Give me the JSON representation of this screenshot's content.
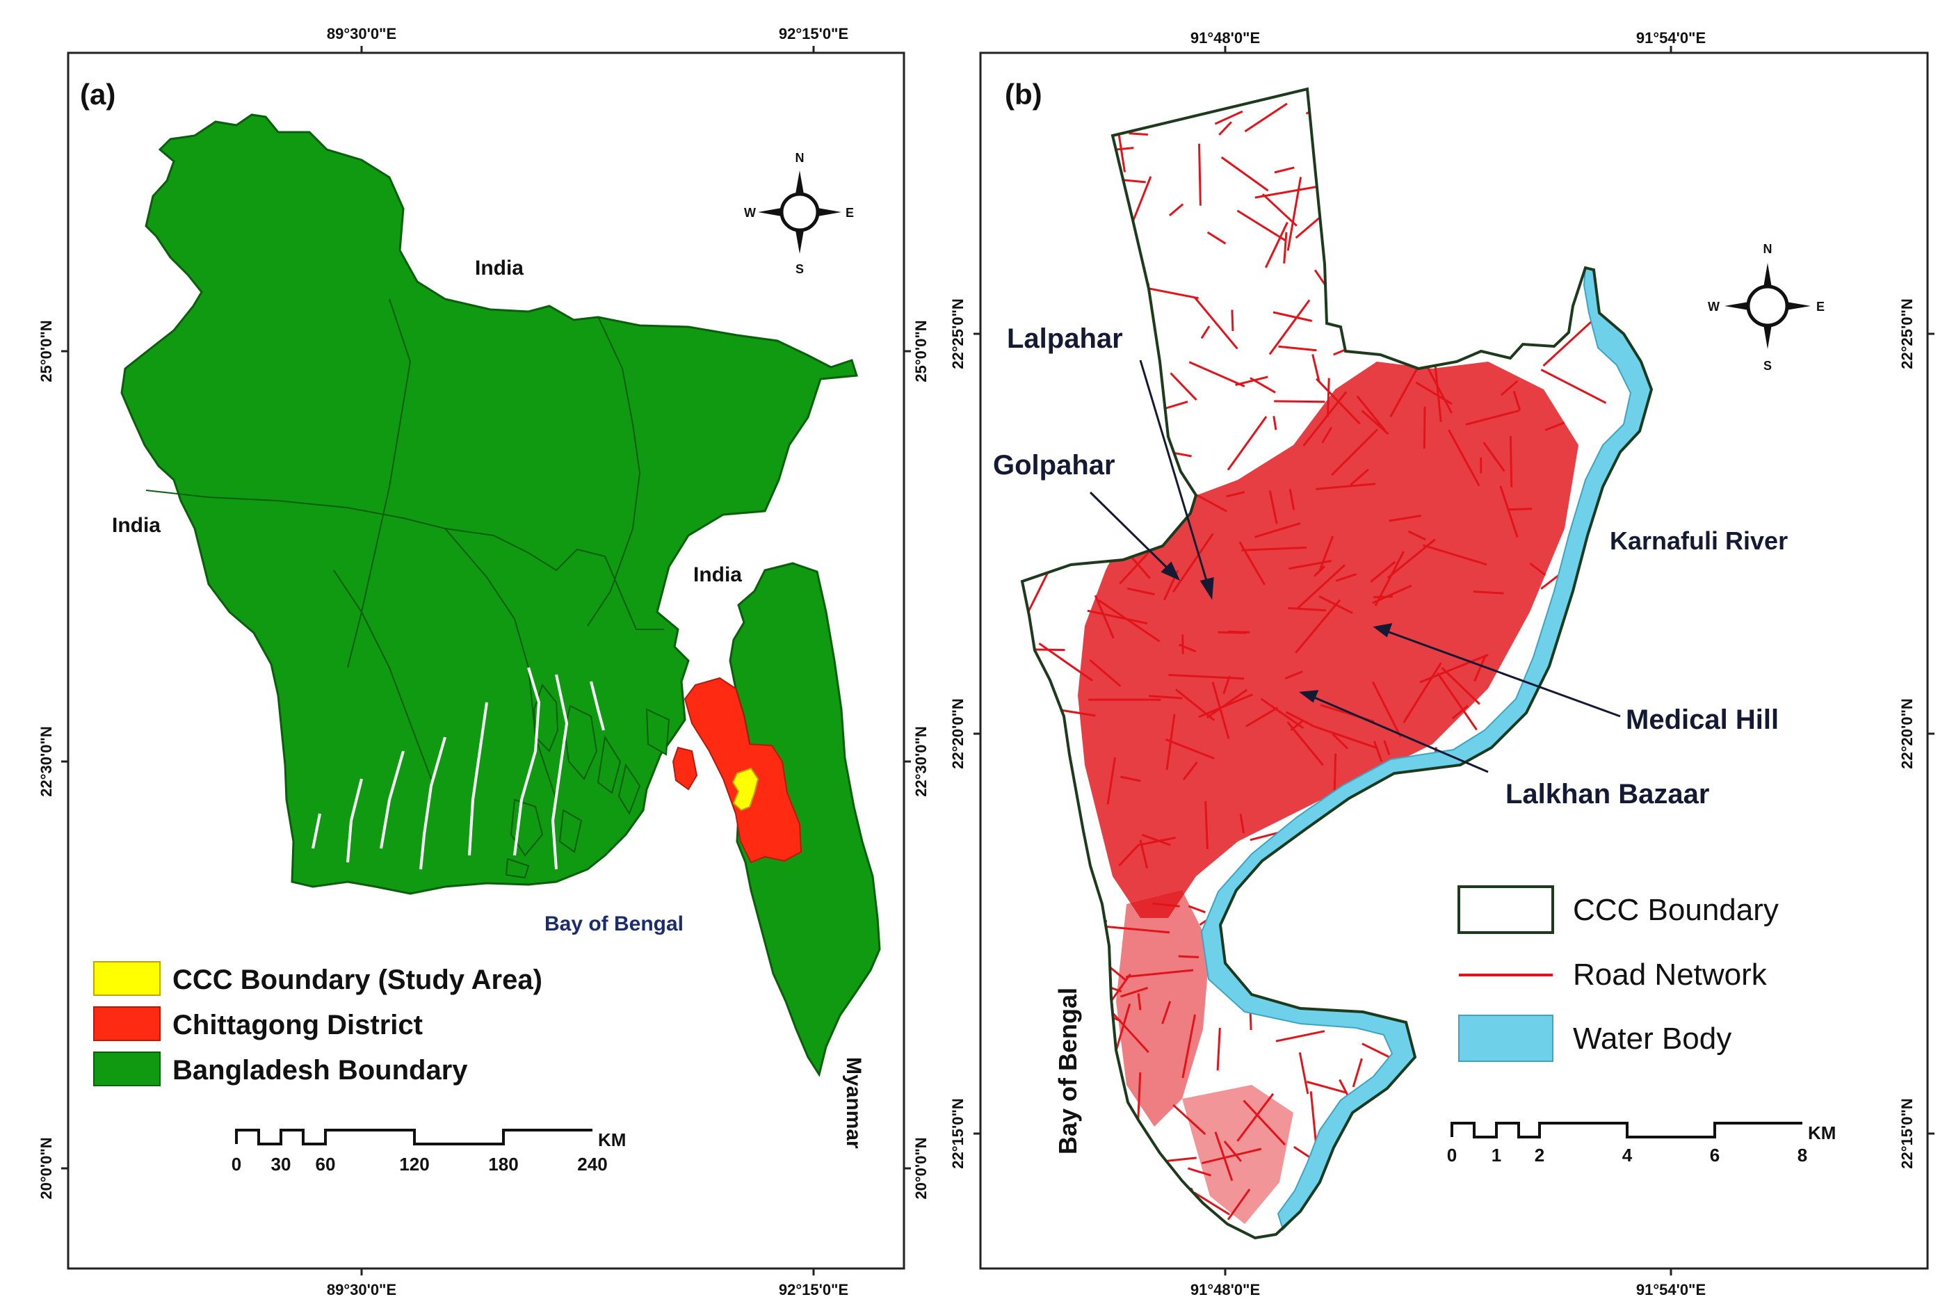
{
  "panel_a": {
    "tag": "(a)",
    "top_ticks": [
      "89°30'0\"E",
      "92°15'0\"E"
    ],
    "bottom_ticks": [
      "89°30'0\"E",
      "92°15'0\"E"
    ],
    "left_ticks": [
      "25°0'0\"N",
      "22°30'0\"N",
      "20°0'0\"N"
    ],
    "right_ticks": [
      "25°0'0\"N",
      "22°30'0\"N",
      "20°0'0\"N"
    ],
    "labels": {
      "india_north": "India",
      "india_west": "India",
      "india_east": "India",
      "bay": "Bay of Bengal",
      "myanmar": "Myanmar"
    },
    "legend": [
      {
        "label": "CCC Boundary (Study Area)",
        "color": "#ffff00"
      },
      {
        "label": "Chittagong District",
        "color": "#ff2a12"
      },
      {
        "label": "Bangladesh Boundary",
        "color": "#0f9a12"
      }
    ],
    "scale": {
      "values": [
        "0",
        "30",
        "60",
        "120",
        "180",
        "240"
      ],
      "unit": "KM"
    },
    "compass": {
      "n": "N",
      "s": "S",
      "e": "E",
      "w": "W"
    }
  },
  "panel_b": {
    "tag": "(b)",
    "top_ticks": [
      "91°48'0\"E",
      "91°54'0\"E"
    ],
    "bottom_ticks": [
      "91°48'0\"E",
      "91°54'0\"E"
    ],
    "left_ticks": [
      "22°25'0\"N",
      "22°20'0\"N",
      "22°15'0\"N"
    ],
    "right_ticks": [
      "22°25'0\"N",
      "22°20'0\"N",
      "22°15'0\"N"
    ],
    "places": {
      "lalpahar": "Lalpahar",
      "golpahar": "Golpahar",
      "karnafuli": "Karnafuli River",
      "medical_hill": "Medical Hill",
      "lalkhan_bazaar": "Lalkhan Bazaar",
      "bay": "Bay of Bengal"
    },
    "legend": [
      {
        "label": "CCC Boundary",
        "color": "#ffffff"
      },
      {
        "label": "Road Network",
        "color": "#e2141b"
      },
      {
        "label": "Water Body",
        "color": "#6fd0ea"
      }
    ],
    "scale": {
      "values": [
        "0",
        "1",
        "2",
        "4",
        "6",
        "8"
      ],
      "unit": "KM"
    },
    "compass": {
      "n": "N",
      "s": "S",
      "e": "E",
      "w": "W"
    }
  }
}
